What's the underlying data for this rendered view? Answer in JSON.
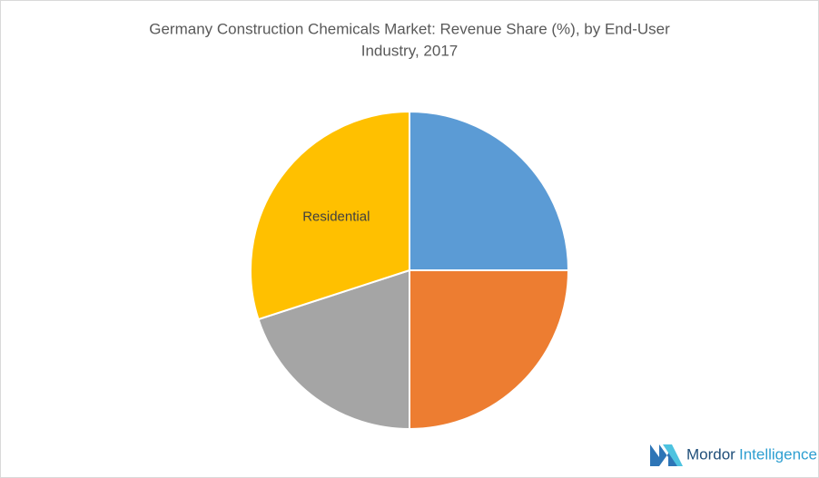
{
  "chart_data": {
    "type": "pie",
    "title": [
      "Germany Construction Chemicals Market: Revenue Share (%), by End-User",
      "Industry, 2017"
    ],
    "categories": [
      null,
      null,
      null,
      "Residential"
    ],
    "values": [
      25,
      25,
      20,
      30
    ],
    "colors": [
      "#5b9bd5",
      "#ed7d31",
      "#a5a5a5",
      "#ffc000"
    ]
  },
  "logo": {
    "name": "Mordor",
    "suffix": "Intelligence"
  }
}
